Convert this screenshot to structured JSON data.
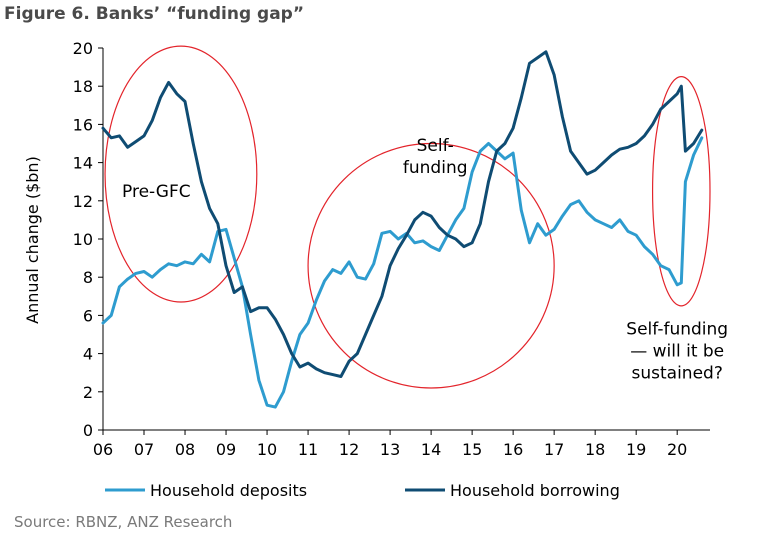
{
  "title": "Figure 6. Banks’ “funding gap”",
  "source": "Source: RBNZ, ANZ Research",
  "chart_data": {
    "type": "line",
    "ylabel": "Annual change ($bn)",
    "xlabel": "",
    "ylim": [
      0,
      20
    ],
    "yticks": [
      "0",
      "2",
      "4",
      "6",
      "8",
      "10",
      "12",
      "14",
      "16",
      "18",
      "20"
    ],
    "xlim": [
      6,
      20.8
    ],
    "xticks": [
      "06",
      "07",
      "08",
      "09",
      "10",
      "11",
      "12",
      "13",
      "14",
      "15",
      "16",
      "17",
      "18",
      "19",
      "20"
    ],
    "grid": false,
    "legend_position": "bottom",
    "annotations": [
      {
        "text": "Pre-GFC",
        "x": 7.3,
        "y": 12.2
      },
      {
        "text": "Self-\nfunding",
        "x": 14.1,
        "y": 14.6
      },
      {
        "text": "Self-funding\n— will it be\nsustained?",
        "x": 20.0,
        "y": 5.0
      }
    ],
    "ellipses": [
      {
        "cx": 7.9,
        "cy": 13.4,
        "rx": 1.85,
        "ry": 6.7
      },
      {
        "cx": 14.0,
        "cy": 8.6,
        "rx": 3.0,
        "ry": 6.4
      },
      {
        "cx": 20.1,
        "cy": 12.5,
        "rx": 0.7,
        "ry": 6.0
      }
    ],
    "series": [
      {
        "name": "Household deposits",
        "color": "#2e9ccf",
        "x": [
          6.0,
          6.2,
          6.4,
          6.6,
          6.8,
          7.0,
          7.2,
          7.4,
          7.6,
          7.8,
          8.0,
          8.2,
          8.4,
          8.6,
          8.8,
          9.0,
          9.2,
          9.4,
          9.6,
          9.8,
          10.0,
          10.2,
          10.4,
          10.6,
          10.8,
          11.0,
          11.2,
          11.4,
          11.6,
          11.8,
          12.0,
          12.2,
          12.4,
          12.6,
          12.8,
          13.0,
          13.2,
          13.4,
          13.6,
          13.8,
          14.0,
          14.2,
          14.4,
          14.6,
          14.8,
          15.0,
          15.2,
          15.4,
          15.6,
          15.8,
          16.0,
          16.2,
          16.4,
          16.6,
          16.8,
          17.0,
          17.2,
          17.4,
          17.6,
          17.8,
          18.0,
          18.2,
          18.4,
          18.6,
          18.8,
          19.0,
          19.2,
          19.4,
          19.6,
          19.8,
          20.0,
          20.1,
          20.2,
          20.4,
          20.6
        ],
        "y": [
          5.6,
          6.0,
          7.5,
          7.9,
          8.2,
          8.3,
          8.0,
          8.4,
          8.7,
          8.6,
          8.8,
          8.7,
          9.2,
          8.8,
          10.4,
          10.5,
          9.0,
          7.5,
          5.0,
          2.6,
          1.3,
          1.2,
          2.0,
          3.6,
          5.0,
          5.6,
          6.8,
          7.8,
          8.4,
          8.2,
          8.8,
          8.0,
          7.9,
          8.7,
          10.3,
          10.4,
          10.0,
          10.3,
          9.8,
          9.9,
          9.6,
          9.4,
          10.2,
          11.0,
          11.6,
          13.5,
          14.6,
          15.0,
          14.6,
          14.2,
          14.5,
          11.5,
          9.8,
          10.8,
          10.2,
          10.5,
          11.2,
          11.8,
          12.0,
          11.4,
          11.0,
          10.8,
          10.6,
          11.0,
          10.4,
          10.2,
          9.6,
          9.2,
          8.6,
          8.4,
          7.6,
          7.7,
          13.0,
          14.4,
          15.3
        ]
      },
      {
        "name": "Household borrowing",
        "color": "#0f4c73",
        "x": [
          6.0,
          6.2,
          6.4,
          6.6,
          6.8,
          7.0,
          7.2,
          7.4,
          7.6,
          7.8,
          8.0,
          8.2,
          8.4,
          8.6,
          8.8,
          9.0,
          9.2,
          9.4,
          9.6,
          9.8,
          10.0,
          10.2,
          10.4,
          10.6,
          10.8,
          11.0,
          11.2,
          11.4,
          11.6,
          11.8,
          12.0,
          12.2,
          12.4,
          12.6,
          12.8,
          13.0,
          13.2,
          13.4,
          13.6,
          13.8,
          14.0,
          14.2,
          14.4,
          14.6,
          14.8,
          15.0,
          15.2,
          15.4,
          15.6,
          15.8,
          16.0,
          16.2,
          16.4,
          16.6,
          16.8,
          17.0,
          17.2,
          17.4,
          17.6,
          17.8,
          18.0,
          18.2,
          18.4,
          18.6,
          18.8,
          19.0,
          19.2,
          19.4,
          19.6,
          19.8,
          20.0,
          20.1,
          20.2,
          20.4,
          20.6
        ],
        "y": [
          15.8,
          15.3,
          15.4,
          14.8,
          15.1,
          15.4,
          16.2,
          17.4,
          18.2,
          17.6,
          17.2,
          15.0,
          13.0,
          11.6,
          10.8,
          8.6,
          7.2,
          7.5,
          6.2,
          6.4,
          6.4,
          5.8,
          5.0,
          4.0,
          3.3,
          3.5,
          3.2,
          3.0,
          2.9,
          2.8,
          3.6,
          4.0,
          5.0,
          6.0,
          7.0,
          8.6,
          9.5,
          10.2,
          11.0,
          11.4,
          11.2,
          10.6,
          10.2,
          10.0,
          9.6,
          9.8,
          10.8,
          13.0,
          14.6,
          15.0,
          15.8,
          17.4,
          19.2,
          19.5,
          19.8,
          18.6,
          16.4,
          14.6,
          14.0,
          13.4,
          13.6,
          14.0,
          14.4,
          14.7,
          14.8,
          15.0,
          15.4,
          16.0,
          16.8,
          17.2,
          17.6,
          18.0,
          14.6,
          15.0,
          15.7
        ]
      }
    ]
  }
}
